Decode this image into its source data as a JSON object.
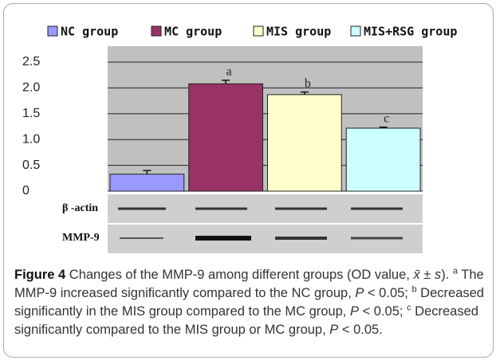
{
  "chart_data": {
    "type": "bar",
    "series": [
      {
        "name": "NC group",
        "color": "#9999ff",
        "values": [
          0.33
        ],
        "errors": [
          0.07
        ],
        "annotations": [
          null
        ]
      },
      {
        "name": "MC group",
        "color": "#993366",
        "values": [
          2.08
        ],
        "errors": [
          0.07
        ],
        "annotations": [
          "a"
        ]
      },
      {
        "name": "MIS group",
        "color": "#ffffcc",
        "values": [
          1.87
        ],
        "errors": [
          0.05
        ],
        "annotations": [
          "b"
        ]
      },
      {
        "name": "MIS+RSG group",
        "color": "#ccffff",
        "values": [
          1.22
        ],
        "errors": [
          0.02
        ],
        "annotations": [
          "c"
        ]
      }
    ],
    "ylim": [
      0,
      2.5
    ],
    "yticks": [
      0,
      0.5,
      {
        "value": 1,
        "label": "1.0"
      },
      1.5,
      {
        "value": 2,
        "label": "2.0"
      },
      2.5
    ],
    "grid": true,
    "legend": "top"
  },
  "blot_labels": [
    "β -actin",
    "MMP-9"
  ],
  "caption": {
    "label": "Figure 4",
    "parts": [
      " Changes of the MMP-9 among different groups (OD value, ",
      "x̄ ± s",
      "). ",
      "a",
      " The MMP-9 increased significantly compared to the NC group, ",
      "P",
      " < 0.05; ",
      "b",
      " Decreased significantly in the MIS group compared to the MC group, ",
      "P",
      " < 0.05; ",
      "c",
      " Decreased significantly compared to the MIS group or MC group, ",
      "P",
      " < 0.05."
    ]
  }
}
